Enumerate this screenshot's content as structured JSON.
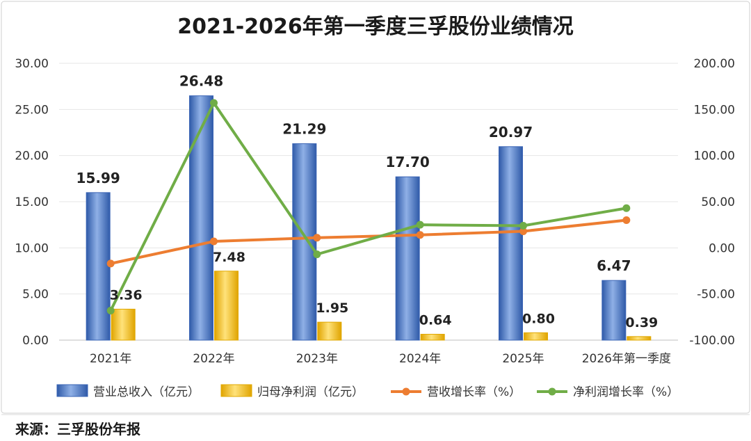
{
  "chart_data": {
    "type": "bar",
    "title": "2021-2026年第一季度三孚股份业绩情况",
    "categories": [
      "2021年",
      "2022年",
      "2023年",
      "2024年",
      "2025年",
      "2026年第一季度"
    ],
    "left_axis": {
      "ylim": [
        0,
        30
      ],
      "ticks": [
        "0.00",
        "5.00",
        "10.00",
        "15.00",
        "20.00",
        "25.00",
        "30.00"
      ]
    },
    "right_axis": {
      "ylim": [
        -100,
        200
      ],
      "ticks": [
        "-100.00",
        "-50.00",
        "0.00",
        "50.00",
        "100.00",
        "150.00",
        "200.00"
      ]
    },
    "series": [
      {
        "name": "营业总收入（亿元）",
        "kind": "bar",
        "axis": "left",
        "color": "#4472C4",
        "values": [
          15.99,
          26.48,
          21.29,
          17.7,
          20.97,
          6.47
        ],
        "labels": [
          "15.99",
          "26.48",
          "21.29",
          "17.70",
          "20.97",
          "6.47"
        ]
      },
      {
        "name": "归母净利润（亿元）",
        "kind": "bar",
        "axis": "left",
        "color": "#FFC000",
        "values": [
          3.36,
          7.48,
          1.95,
          0.64,
          0.8,
          0.39
        ],
        "labels": [
          "3.36",
          "7.48",
          "1.95",
          "0.64",
          "0.80",
          "0.39"
        ]
      },
      {
        "name": "营收增长率（%）",
        "kind": "line",
        "axis": "right",
        "color": "#ED7D31",
        "values": [
          -17,
          7,
          11,
          14,
          18,
          30
        ]
      },
      {
        "name": "净利润增长率（%）",
        "kind": "line",
        "axis": "right",
        "color": "#70AD47",
        "values": [
          -68,
          157,
          -7,
          25,
          24,
          43
        ]
      }
    ],
    "legend_position": "bottom",
    "source": "来源：三孚股份年报"
  }
}
